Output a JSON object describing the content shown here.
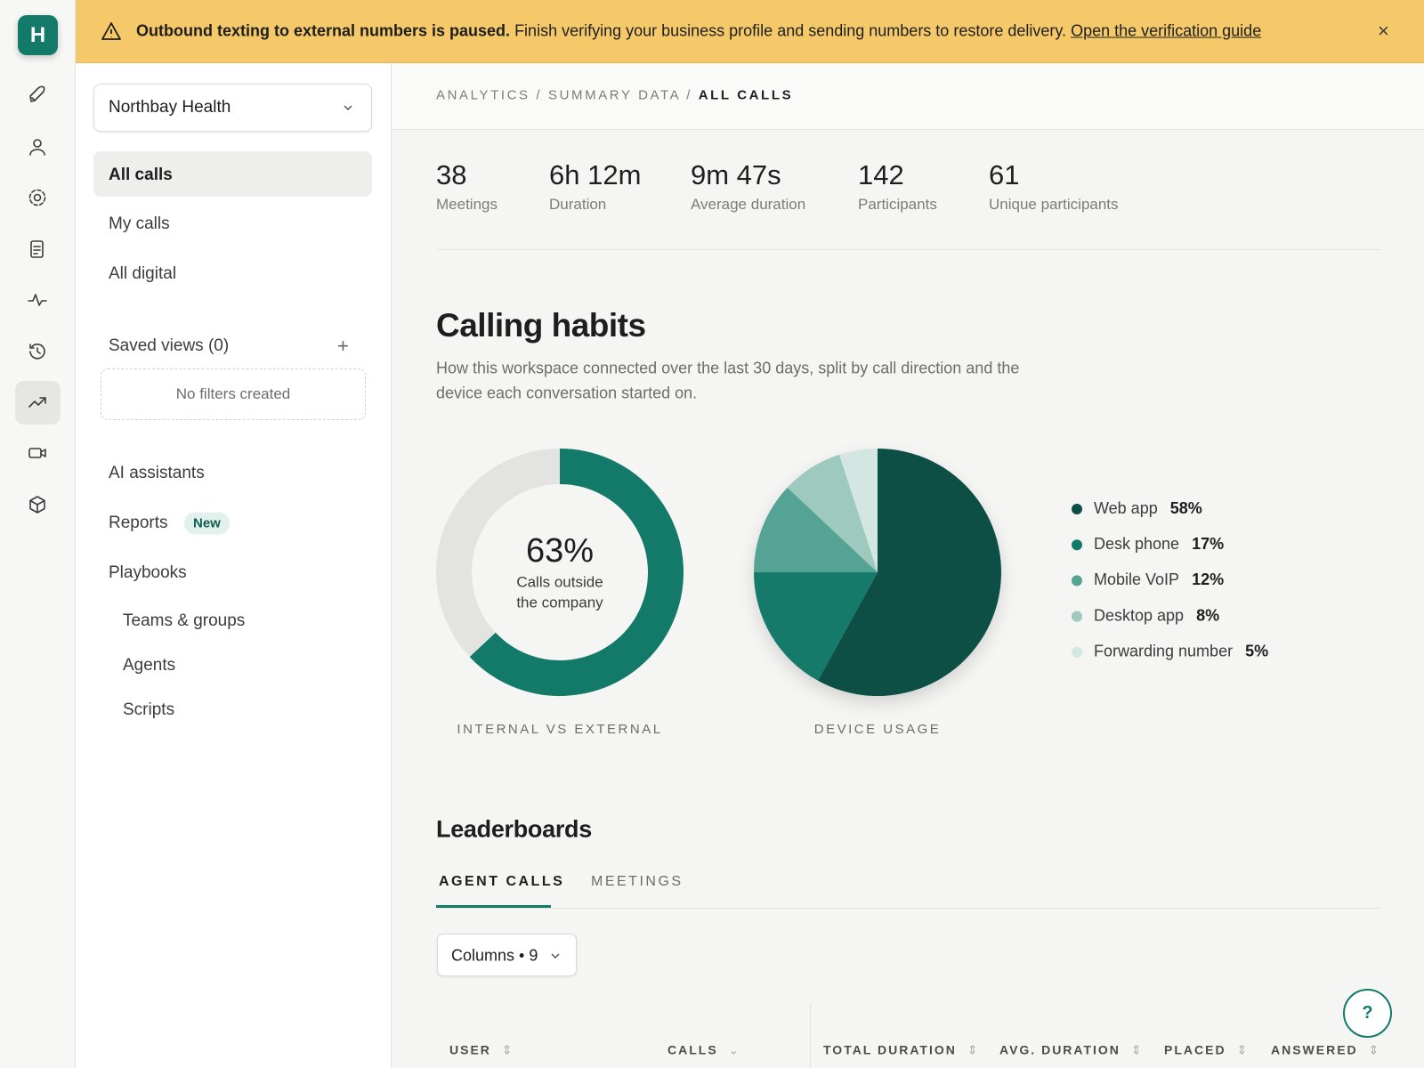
{
  "banner": {
    "headline": "Outbound texting to external numbers is paused.",
    "message": "Finish verifying your business profile and sending numbers to restore delivery.",
    "link": "Open the verification guide"
  },
  "logo": "H",
  "sidebar": {
    "workspace": "Northbay Health",
    "items": [
      "All calls",
      "My calls",
      "All digital"
    ],
    "saved_views": "Saved views (0)",
    "empty_filters": "No filters created",
    "sections": [
      {
        "label": "AI assistants"
      },
      {
        "label": "Reports",
        "badge": "New"
      },
      {
        "label": "Playbooks"
      }
    ],
    "sub_items": [
      "Teams & groups",
      "Agents",
      "Scripts"
    ]
  },
  "breadcrumb": [
    "ANALYTICS",
    "SUMMARY DATA",
    "ALL CALLS"
  ],
  "stats": [
    {
      "value": "38",
      "label": "Meetings"
    },
    {
      "value": "6h 12m",
      "label": "Duration"
    },
    {
      "value": "9m 47s",
      "label": "Average duration"
    },
    {
      "value": "142",
      "label": "Participants"
    },
    {
      "value": "61",
      "label": "Unique participants"
    }
  ],
  "section": {
    "title": "Calling habits",
    "description": [
      "How this workspace connected over the last 30 days, split by call direction and the",
      "device each conversation started on."
    ]
  },
  "chart_data": [
    {
      "type": "donut",
      "title": "INTERNAL VS EXTERNAL",
      "value": 63,
      "value_label": "63%",
      "caption": [
        "Calls outside",
        "the company"
      ],
      "color": "#137a6a",
      "track_color": "#e3e4e1"
    },
    {
      "type": "pie",
      "title": "DEVICE USAGE",
      "categories": [
        "Web app",
        "Desk phone",
        "Mobile VoIP",
        "Desktop app",
        "Forwarding number"
      ],
      "values": [
        58,
        17,
        12,
        8,
        5
      ],
      "value_labels": [
        "58%",
        "17%",
        "12%",
        "8%",
        "5%"
      ],
      "colors": [
        "#0b4f45",
        "#137a6a",
        "#55a395",
        "#9dc9bf",
        "#d4e6e1"
      ]
    }
  ],
  "leaderboards": {
    "title": "Leaderboards",
    "tabs": [
      "AGENT CALLS",
      "MEETINGS"
    ],
    "columns_button": "Columns • 9",
    "headers": [
      "USER",
      "CALLS",
      "TOTAL DURATION",
      "AVG. DURATION",
      "PLACED",
      "ANSWERED"
    ]
  },
  "help": "?"
}
